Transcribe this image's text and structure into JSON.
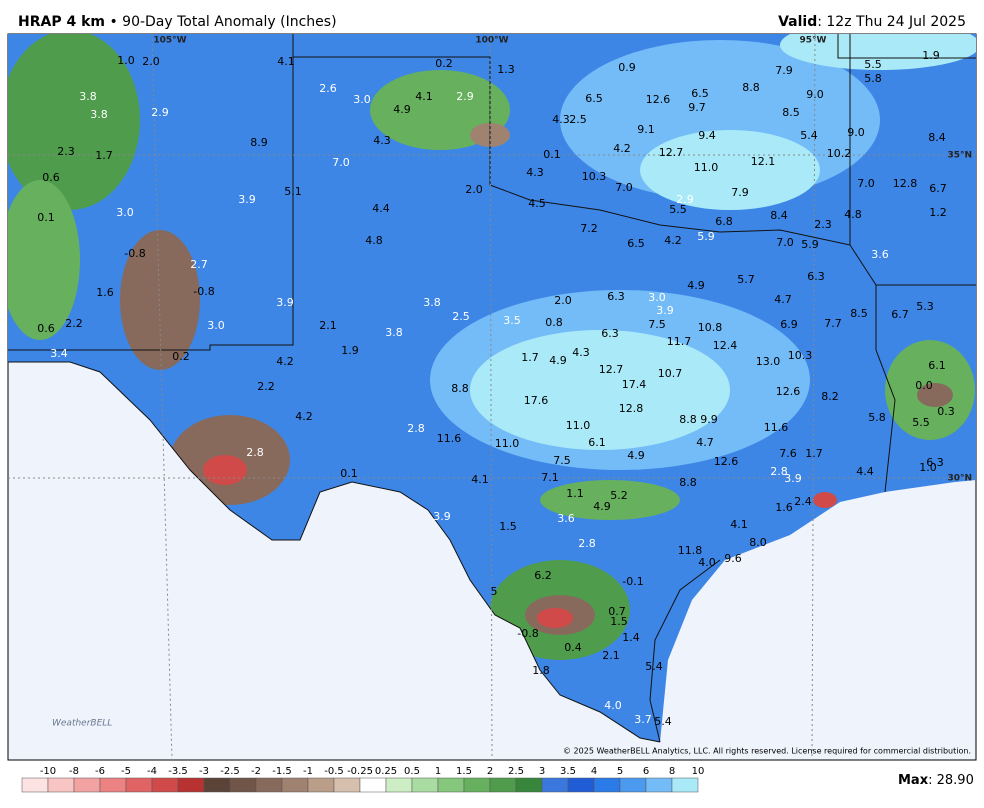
{
  "header": {
    "product": "HRAP 4 km",
    "separator": "•",
    "title": "90-Day Total Anomaly (Inches)",
    "valid_label": "Valid",
    "valid_value": ": 12z Thu 24 Jul 2025"
  },
  "grid_labels": [
    "105°W",
    "100°W",
    "95°W",
    "35°N",
    "30°N"
  ],
  "logo": "WeatherBELL",
  "copyright": "© 2025 WeatherBELL Analytics, LLC. All rights reserved. License required for commercial distribution.",
  "legend": {
    "labels": [
      "-10",
      "-8",
      "-6",
      "-5",
      "-4",
      "-3.5",
      "-3",
      "-2.5",
      "-2",
      "-1.5",
      "-1",
      "-0.5",
      "-0.25",
      "0.25",
      "0.5",
      "1",
      "1.5",
      "2",
      "2.5",
      "3",
      "3.5",
      "4",
      "5",
      "6",
      "8",
      "10"
    ],
    "colors": [
      "#fde2e2",
      "#f9c4c4",
      "#f3a2a2",
      "#ec8282",
      "#e06464",
      "#d04a4a",
      "#b83232",
      "#5c4338",
      "#705548",
      "#886a5c",
      "#a08270",
      "#ba9e8a",
      "#d6bfac",
      "#ffffff",
      "#cdeec4",
      "#a9dca0",
      "#86c77e",
      "#67b05e",
      "#4e9c4c",
      "#37863c",
      "#3a78de",
      "#1f5cd6",
      "#2a7ae8",
      "#4c9af0",
      "#74bcf8",
      "#aaeaf8"
    ]
  },
  "max": {
    "label": "Max",
    "value": ": 28.90"
  },
  "map_labels": [
    "1.0",
    "2.0",
    "4.1",
    "0.2",
    "1.3",
    "0.9",
    "7.9",
    "5.5",
    "1.9",
    "5.8",
    "3.8",
    "2.6",
    "3.0",
    "4.1",
    "2.9",
    "6.5",
    "12.6",
    "6.5",
    "8.8",
    "9.0",
    "3.8",
    "2.9",
    "4.9",
    "9.7",
    "4.3",
    "2.5",
    "8.5",
    "9.1",
    "9.4",
    "5.4",
    "9.0",
    "8.4",
    "8.9",
    "4.3",
    "2.3",
    "1.7",
    "0.1",
    "4.2",
    "12.7",
    "12.1",
    "10.2",
    "7.0",
    "11.0",
    "4.3",
    "10.3",
    "0.6",
    "5.1",
    "2.0",
    "7.0",
    "7.9",
    "7.0",
    "12.8",
    "6.7",
    "3.9",
    "4.5",
    "2.9",
    "5.5",
    "4.4",
    "0.1",
    "3.0",
    "6.8",
    "8.4",
    "2.3",
    "4.8",
    "1.2",
    "7.2",
    "5.9",
    "4.8",
    "6.5",
    "4.2",
    "7.0",
    "5.9",
    "3.6",
    "-0.8",
    "2.7",
    "5.7",
    "6.3",
    "1.6",
    "-0.8",
    "4.9",
    "2.0",
    "6.3",
    "3.0",
    "3.8",
    "3.9",
    "4.7",
    "5.3",
    "3.9",
    "8.5",
    "6.7",
    "2.2",
    "3.0",
    "2.1",
    "2.5",
    "3.5",
    "0.8",
    "7.5",
    "10.8",
    "6.9",
    "7.7",
    "0.6",
    "3.8",
    "6.3",
    "11.7",
    "12.4",
    "3.4",
    "1.9",
    "4.3",
    "1.7",
    "4.9",
    "13.0",
    "10.3",
    "0.2",
    "4.2",
    "6.1",
    "12.7",
    "10.7",
    "0.0",
    "17.4",
    "2.2",
    "8.8",
    "12.6",
    "8.2",
    "17.6",
    "12.8",
    "0.3",
    "4.2",
    "8.8",
    "9.9",
    "5.8",
    "11.0",
    "11.6",
    "5.5",
    "2.8",
    "11.6",
    "11.0",
    "6.1",
    "4.7",
    "7.6",
    "1.7",
    "4.9",
    "2.8",
    "7.5",
    "12.6",
    "6.3",
    "1.0",
    "4.4",
    "2.8",
    "3.9",
    "0.1",
    "7.1",
    "4.1",
    "8.8",
    "1.1",
    "5.2",
    "2.4",
    "1.6",
    "4.9",
    "3.9",
    "3.6",
    "4.1",
    "1.5",
    "8.0",
    "2.8",
    "11.8",
    "9.6",
    "4.0",
    "6.2",
    "-0.1",
    "5",
    "0.7",
    "1.5",
    "-0.8",
    "1.4",
    "0.4",
    "2.1",
    "5.4",
    "1.8",
    "4.0",
    "3.7",
    "5.4"
  ]
}
